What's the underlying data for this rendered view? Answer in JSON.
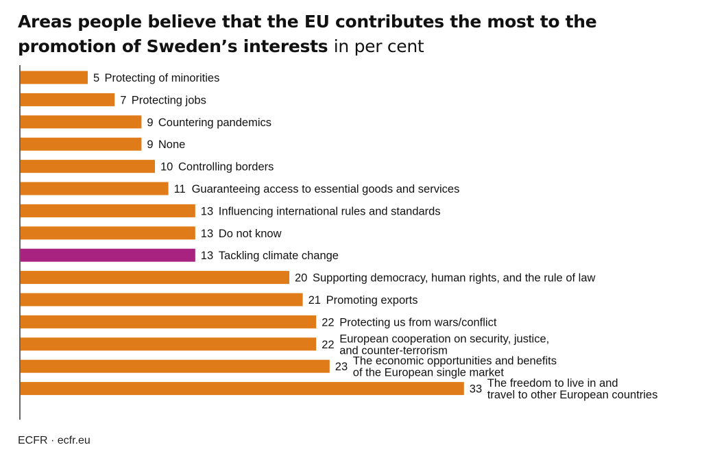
{
  "header": {
    "title": "Areas people believe that the EU contributes the most to the promotion of Sweden’s interests",
    "unit": "in per cent"
  },
  "footer": {
    "source": "ECFR · ecfr.eu"
  },
  "colors": {
    "bar": "#e07b1a",
    "highlight": "#a8237f",
    "axis": "#333333",
    "text": "#111111"
  },
  "chart_data": {
    "type": "bar",
    "orientation": "horizontal",
    "title": "Areas people believe that the EU contributes the most to the promotion of Sweden’s interests",
    "unit": "in per cent",
    "xlim": [
      0,
      33
    ],
    "grid": false,
    "legend": "none",
    "categories": [
      "Protecting of minorities",
      "Protecting jobs",
      "Countering pandemics",
      "None",
      "Controlling borders",
      "Guaranteeing access to essential goods and services",
      "Influencing international rules and standards",
      "Do not know",
      "Tackling climate change",
      "Supporting democracy, human rights, and the rule of law",
      "Promoting exports",
      "Protecting us from wars/conflict",
      "European cooperation on security, justice,\nand counter-terrorism",
      "The economic opportunities and benefits\nof the European single market",
      "The freedom to live in and\ntravel to other European countries"
    ],
    "values": [
      5,
      7,
      9,
      9,
      10,
      11,
      13,
      13,
      13,
      20,
      21,
      22,
      22,
      23,
      33
    ],
    "highlighted": [
      "Tackling climate change"
    ]
  }
}
